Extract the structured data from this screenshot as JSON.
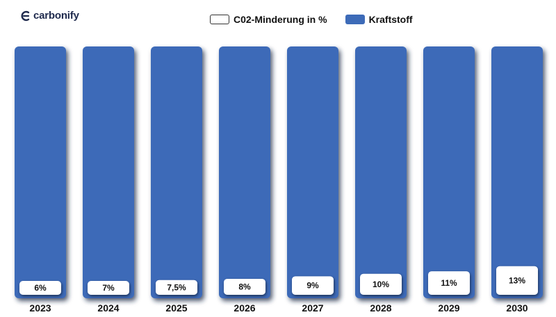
{
  "brand": {
    "name": "carbonify"
  },
  "colors": {
    "fuel": "#3d6bb8",
    "co2": "#ffffff",
    "shadow": "#1b2a44"
  },
  "chart_data": {
    "type": "bar",
    "stacked": true,
    "categories": [
      "2023",
      "2024",
      "2025",
      "2026",
      "2027",
      "2028",
      "2029",
      "2030"
    ],
    "series": [
      {
        "name": "C02-Minderung in %",
        "values": [
          6,
          7,
          7.5,
          8,
          9,
          10,
          11,
          13
        ],
        "labels": [
          "6%",
          "7%",
          "7,5%",
          "8%",
          "9%",
          "10%",
          "11%",
          "13%"
        ]
      },
      {
        "name": "Kraftstoff",
        "values": [
          94,
          93,
          92.5,
          92,
          91,
          90,
          89,
          87
        ]
      }
    ],
    "ylim": [
      0,
      100
    ],
    "legend": "top-center"
  }
}
